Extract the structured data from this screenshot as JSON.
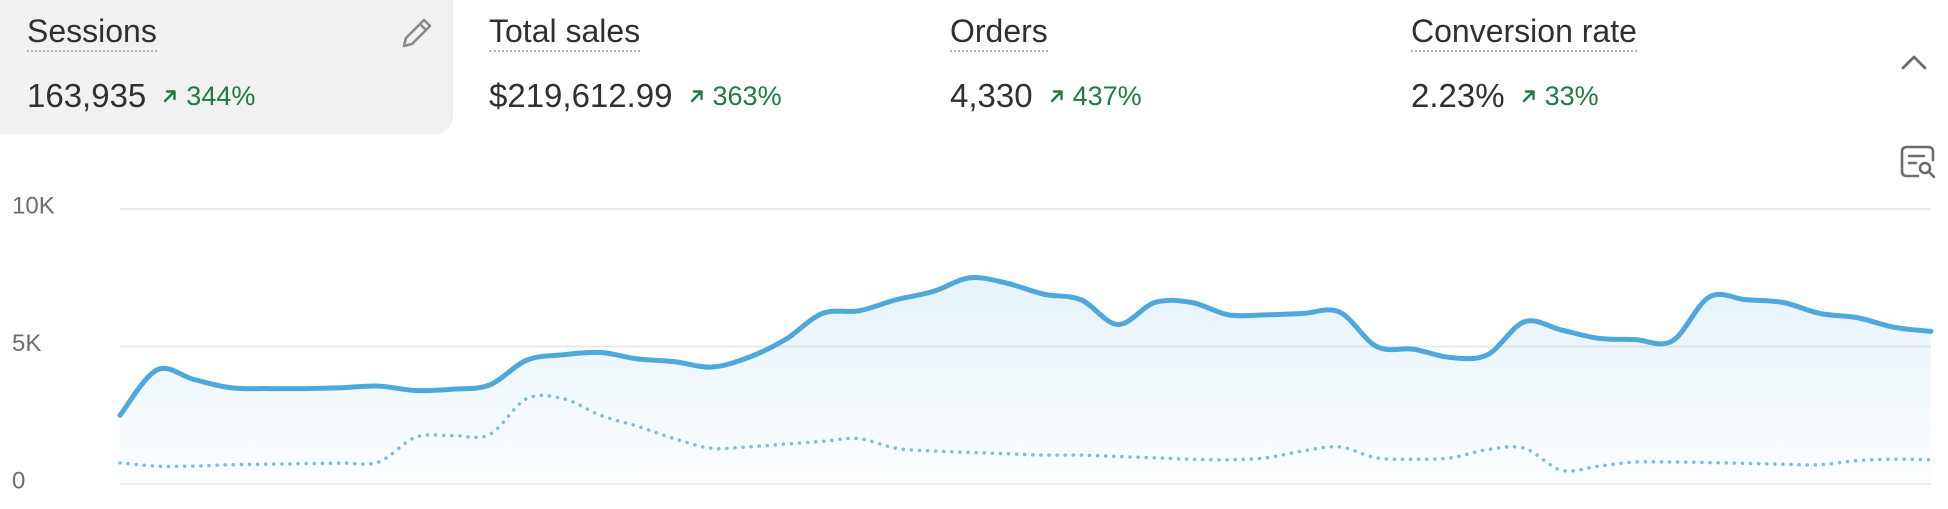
{
  "metrics": [
    {
      "title": "Sessions",
      "value": "163,935",
      "change": "344%"
    },
    {
      "title": "Total sales",
      "value": "$219,612.99",
      "change": "363%"
    },
    {
      "title": "Orders",
      "value": "4,330",
      "change": "437%"
    },
    {
      "title": "Conversion rate",
      "value": "2.23%",
      "change": "33%"
    }
  ],
  "chart_data": {
    "type": "line",
    "ylim": [
      0,
      10000
    ],
    "yticks": [
      0,
      {
        "value": 5000,
        "label": "5K"
      },
      {
        "value": 10000,
        "label": "10K"
      }
    ],
    "grid": true,
    "series": [
      {
        "color": "#4ea8db",
        "style": "solid",
        "area": true,
        "values": [
          2500,
          4150,
          3800,
          3500,
          3470,
          3470,
          3500,
          3560,
          3400,
          3450,
          3600,
          4500,
          4700,
          4780,
          4550,
          4450,
          4250,
          4600,
          5250,
          6200,
          6300,
          6700,
          7000,
          7500,
          7300,
          6900,
          6700,
          5800,
          6600,
          6600,
          6150,
          6150,
          6200,
          6250,
          5000,
          4900,
          4600,
          4700,
          5900,
          5600,
          5300,
          5250,
          5200,
          6800,
          6700,
          6600,
          6200,
          6050,
          5700,
          5550
        ]
      },
      {
        "color": "#7fbfe2",
        "style": "dotted",
        "area": false,
        "values": [
          770,
          650,
          650,
          700,
          720,
          740,
          760,
          800,
          1700,
          1760,
          1800,
          3100,
          3100,
          2500,
          2100,
          1650,
          1300,
          1350,
          1450,
          1550,
          1650,
          1300,
          1200,
          1150,
          1100,
          1050,
          1050,
          1000,
          950,
          900,
          880,
          950,
          1200,
          1350,
          950,
          900,
          950,
          1250,
          1300,
          500,
          650,
          800,
          800,
          780,
          750,
          720,
          700,
          850,
          900,
          880
        ]
      }
    ]
  }
}
